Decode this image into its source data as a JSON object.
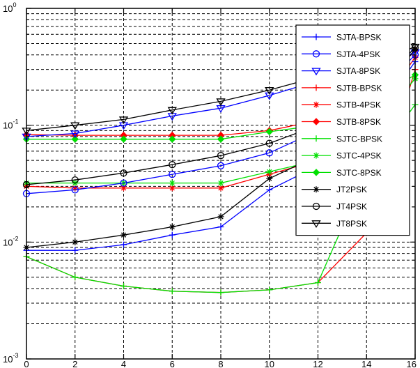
{
  "chart_data": {
    "type": "line",
    "title": "",
    "xlabel": "",
    "ylabel": "",
    "xlim": [
      0,
      16
    ],
    "ylim": [
      0.001,
      1
    ],
    "y_scale": "log",
    "grid": true,
    "legend_position": "top-right",
    "x_ticks": [
      "0",
      "2",
      "4",
      "6",
      "8",
      "10",
      "12",
      "14",
      "16"
    ],
    "y_ticks": [
      {
        "value": 1,
        "base": "10",
        "exp": "0"
      },
      {
        "value": 0.1,
        "base": "10",
        "exp": "-1"
      },
      {
        "value": 0.01,
        "base": "10",
        "exp": "-2"
      },
      {
        "value": 0.001,
        "base": "10",
        "exp": "-3"
      }
    ],
    "x": [
      0,
      2,
      4,
      6,
      8,
      10,
      12,
      14,
      16
    ],
    "series": [
      {
        "name": "SJTA-BPSK",
        "color": "#0000ff",
        "marker": "plus",
        "values": [
          0.0085,
          0.0085,
          0.0095,
          0.0115,
          0.0135,
          0.028,
          0.045,
          0.09,
          0.35
        ]
      },
      {
        "name": "SJTA-4PSK",
        "color": "#0000ff",
        "marker": "circle",
        "values": [
          0.026,
          0.028,
          0.032,
          0.038,
          0.045,
          0.058,
          0.09,
          0.15,
          0.4
        ]
      },
      {
        "name": "SJTA-8PSK",
        "color": "#0000ff",
        "marker": "triangle-down",
        "values": [
          0.08,
          0.085,
          0.1,
          0.12,
          0.14,
          0.18,
          0.24,
          0.3,
          0.42
        ]
      },
      {
        "name": "SJTB-BPSK",
        "color": "#ff0000",
        "marker": "plus",
        "values": [
          0.0075,
          0.005,
          0.0042,
          0.0038,
          0.0037,
          0.0039,
          0.0045,
          0.012,
          0.3
        ]
      },
      {
        "name": "SJTB-4PSK",
        "color": "#ff0000",
        "marker": "star",
        "values": [
          0.03,
          0.029,
          0.029,
          0.029,
          0.029,
          0.038,
          0.05,
          0.1,
          0.38
        ]
      },
      {
        "name": "SJTB-8PSK",
        "color": "#ff0000",
        "marker": "diamond",
        "values": [
          0.083,
          0.082,
          0.082,
          0.082,
          0.082,
          0.09,
          0.11,
          0.15,
          0.44
        ]
      },
      {
        "name": "SJTC-BPSK",
        "color": "#00e000",
        "marker": "plus",
        "values": [
          0.0075,
          0.005,
          0.0042,
          0.0038,
          0.0037,
          0.0039,
          0.0045,
          0.04,
          0.15
        ]
      },
      {
        "name": "SJTC-4PSK",
        "color": "#00e000",
        "marker": "star",
        "values": [
          0.032,
          0.032,
          0.032,
          0.032,
          0.032,
          0.04,
          0.05,
          0.08,
          0.25
        ]
      },
      {
        "name": "SJTC-8PSK",
        "color": "#00e000",
        "marker": "diamond",
        "values": [
          0.076,
          0.076,
          0.076,
          0.076,
          0.076,
          0.088,
          0.1,
          0.15,
          0.27
        ]
      },
      {
        "name": "JT2PSK",
        "color": "#000000",
        "marker": "star",
        "values": [
          0.009,
          0.01,
          0.0115,
          0.0135,
          0.0165,
          0.035,
          0.055,
          0.12,
          0.45
        ]
      },
      {
        "name": "JT4PSK",
        "color": "#000000",
        "marker": "circle",
        "values": [
          0.031,
          0.034,
          0.039,
          0.046,
          0.055,
          0.07,
          0.1,
          0.18,
          0.46
        ]
      },
      {
        "name": "JT8PSK",
        "color": "#000000",
        "marker": "triangle-down",
        "values": [
          0.09,
          0.1,
          0.112,
          0.135,
          0.16,
          0.2,
          0.26,
          0.32,
          0.47
        ]
      }
    ]
  }
}
